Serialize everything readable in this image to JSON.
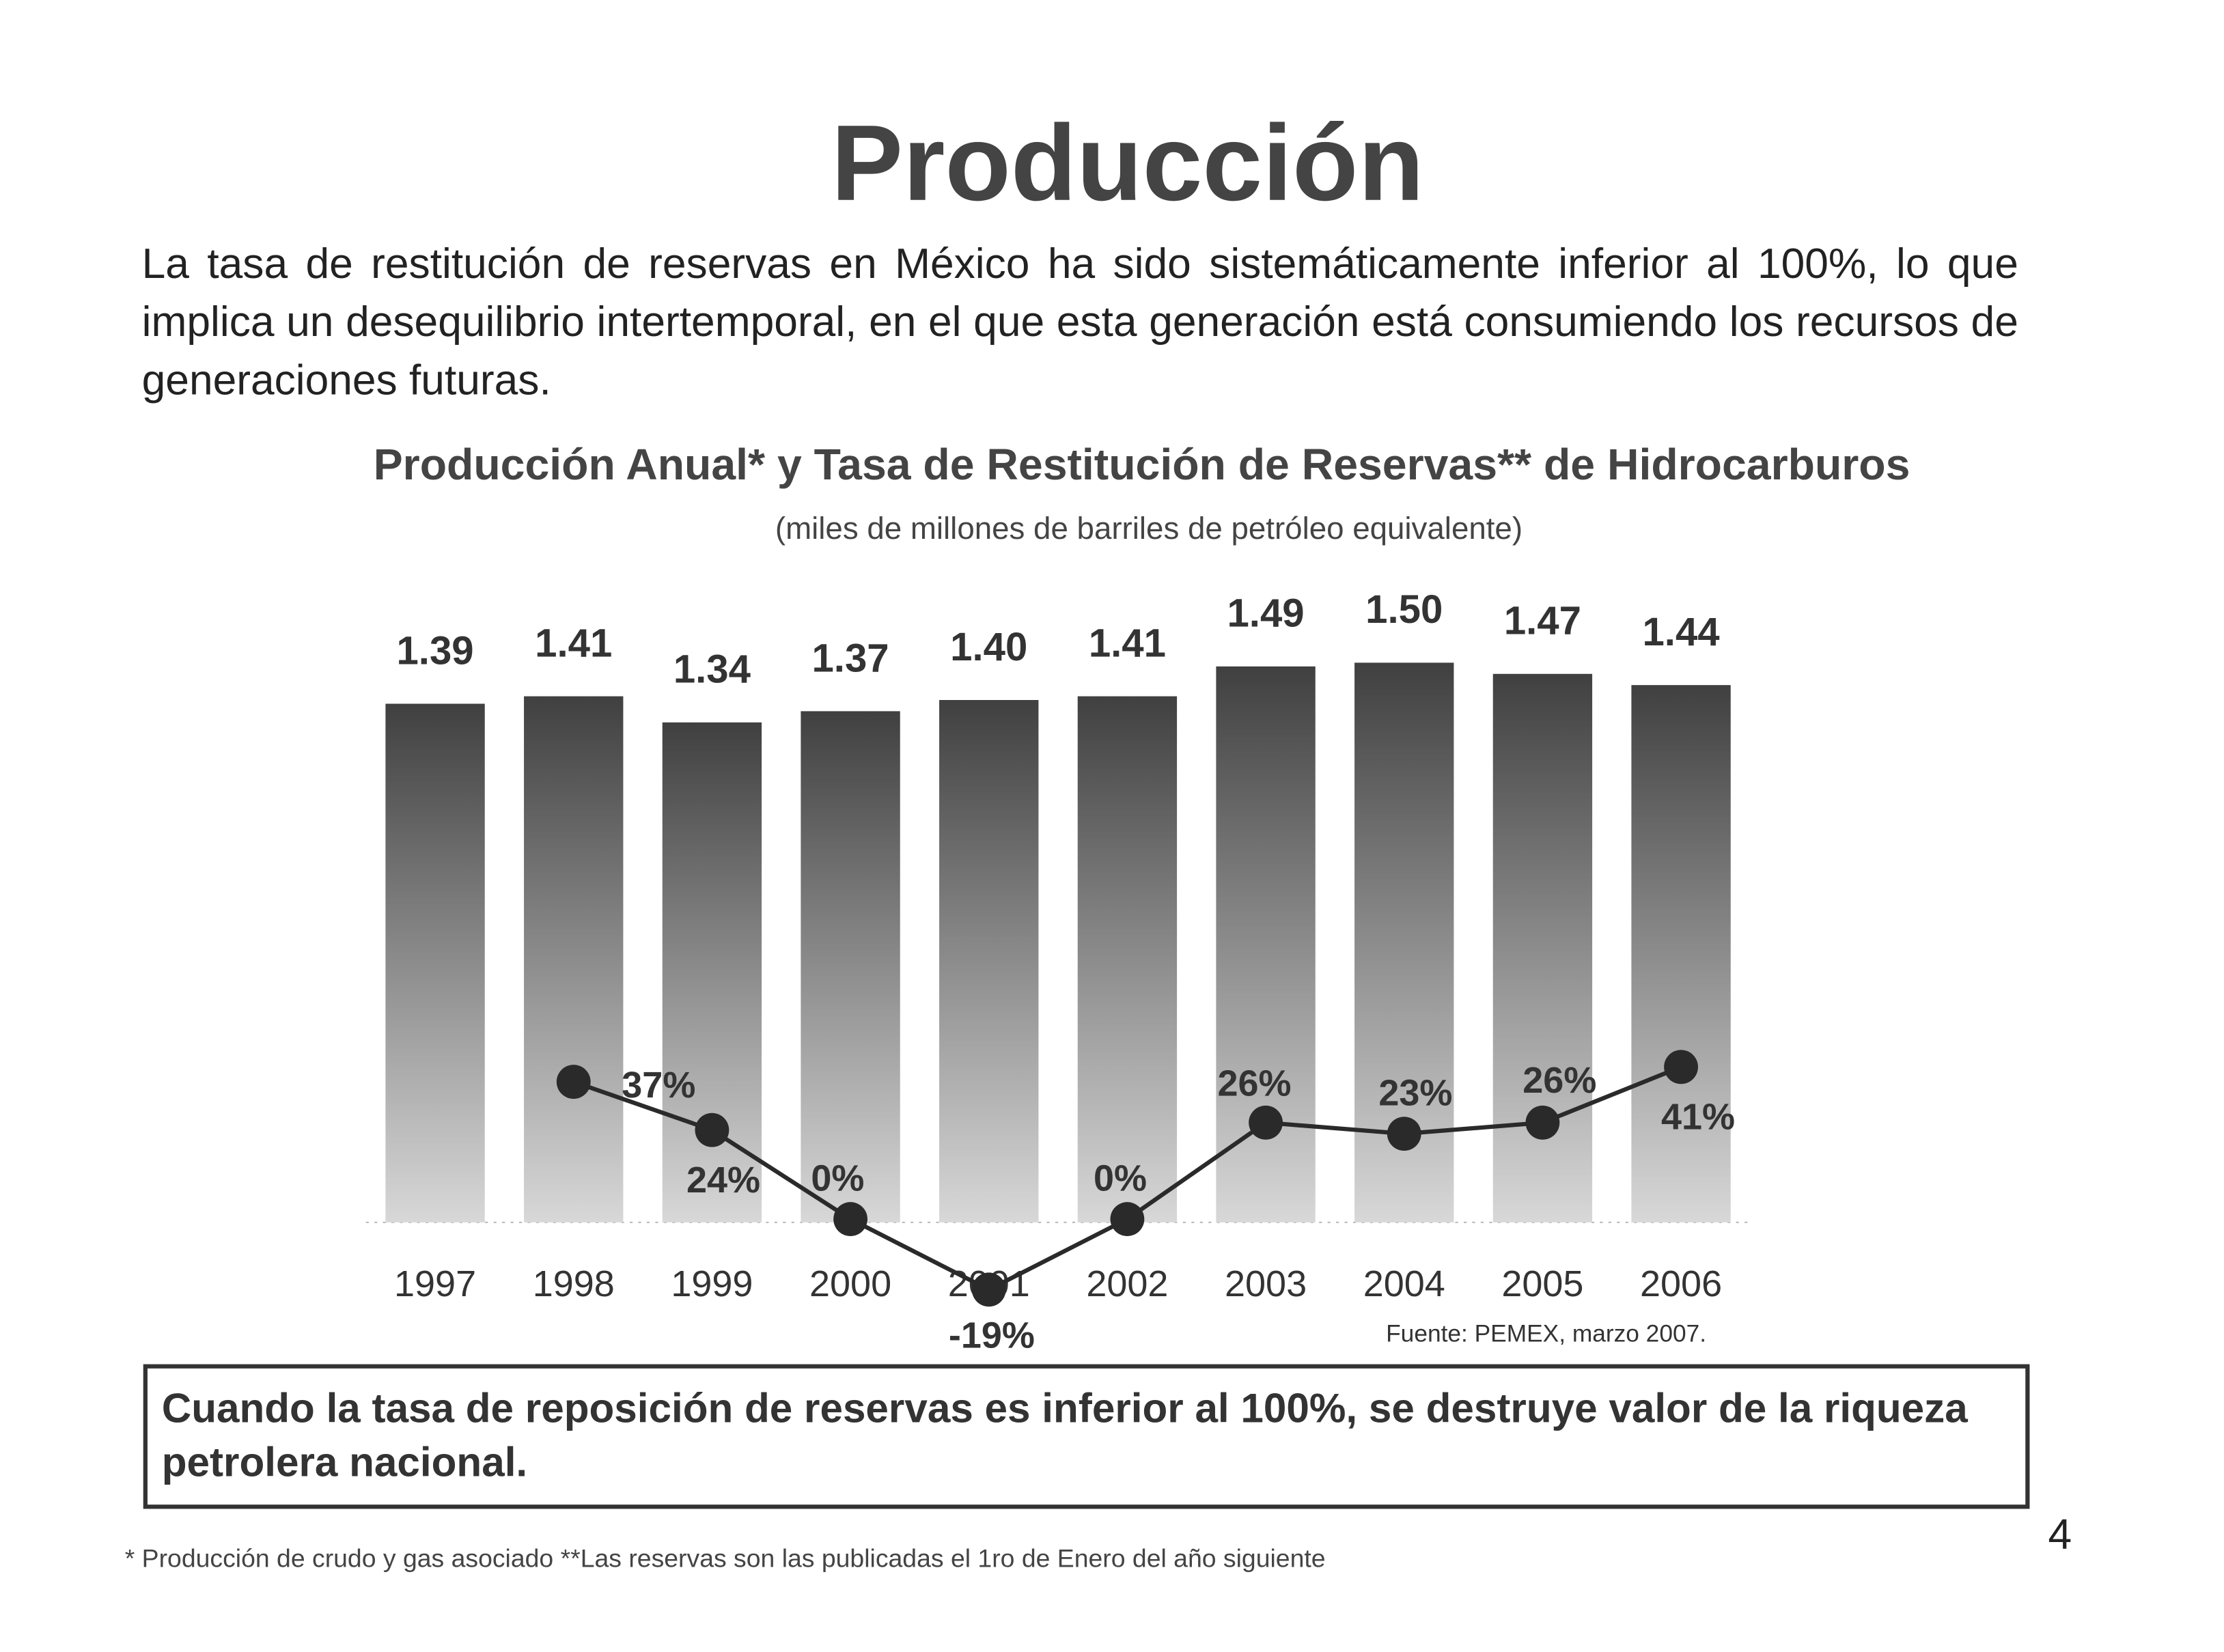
{
  "title": "Producción",
  "paragraph": "La tasa de restitución de reservas en México ha sido sistemáticamente inferior al 100%, lo que implica un desequilibrio intertemporal, en el que esta generación está consumiendo los recursos de generaciones futuras.",
  "chart_data": {
    "type": "bar",
    "title": "Producción Anual* y Tasa de Restitución de Reservas** de Hidrocarburos",
    "subtitle": "(miles de millones de barriles de petróleo equivalente)",
    "categories": [
      "1997",
      "1998",
      "1999",
      "2000",
      "2001",
      "2002",
      "2003",
      "2004",
      "2005",
      "2006"
    ],
    "series": [
      {
        "type": "bar",
        "color": "#404040",
        "values": [
          1.39,
          1.41,
          1.34,
          1.37,
          1.4,
          1.41,
          1.49,
          1.5,
          1.47,
          1.44
        ],
        "value_labels": [
          "1.39",
          "1.41",
          "1.34",
          "1.37",
          "1.40",
          "1.41",
          "1.49",
          "1.50",
          "1.47",
          "1.44"
        ]
      },
      {
        "type": "line",
        "axis": "y2",
        "color": "#2a2a2a",
        "values": [
          null,
          37,
          24,
          0,
          -19,
          0,
          26,
          23,
          26,
          41
        ],
        "value_labels": [
          null,
          "37%",
          "24%",
          "0%",
          "-19%",
          "0%",
          "26%",
          "23%",
          "26%",
          "41%"
        ]
      }
    ],
    "ylim": [
      0,
      1.6
    ],
    "y2lim": [
      -20,
      160
    ],
    "source": "Fuente: PEMEX, marzo 2007."
  },
  "callout": "Cuando la tasa de reposición de reservas es inferior al 100%, se destruye valor de la riqueza petrolera nacional.",
  "footnote": "*   Producción de crudo y gas asociado **Las reservas son las publicadas el 1ro de Enero del año siguiente",
  "page_number": "4"
}
